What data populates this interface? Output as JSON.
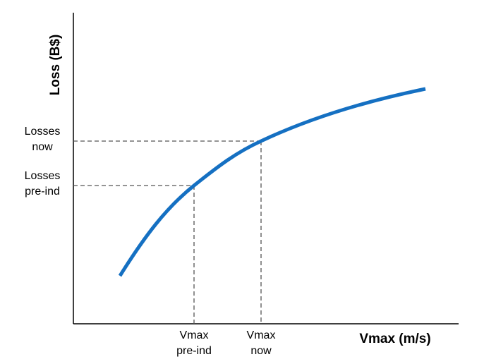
{
  "chart_data": {
    "type": "line",
    "title": "",
    "xlabel": "Vmax (m/s)",
    "ylabel": "Loss (B$)",
    "series": [
      {
        "values": []
      }
    ],
    "reference_points": [
      {
        "x_label": [
          "Vmax",
          "pre-ind"
        ],
        "y_label": [
          "Losses",
          "pre-ind"
        ]
      },
      {
        "x_label": [
          "Vmax",
          "now"
        ],
        "y_label": [
          "Losses",
          "now"
        ]
      }
    ],
    "curve_color": "#1570c2",
    "axis_color": "#000000",
    "guide_color": "#555555",
    "grid": false
  }
}
